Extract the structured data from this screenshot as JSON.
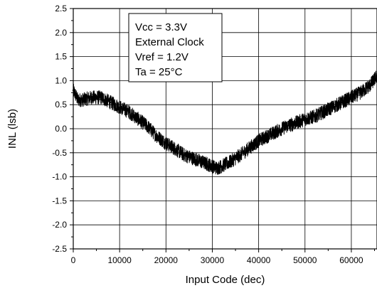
{
  "chart_data": {
    "type": "line",
    "title": "",
    "xlabel": "Input Code (dec)",
    "ylabel": "INL (lsb)",
    "xlim": [
      0,
      65535
    ],
    "ylim": [
      -2.5,
      2.5
    ],
    "xticks": [
      0,
      10000,
      20000,
      30000,
      40000,
      50000,
      60000
    ],
    "xtick_labels": [
      "0",
      "10000",
      "20000",
      "30000",
      "40000",
      "50000",
      "60000"
    ],
    "yticks": [
      2.5,
      2.0,
      1.5,
      1.0,
      0.5,
      0.0,
      -0.5,
      -1.0,
      -1.5,
      -2.0,
      -2.5
    ],
    "ytick_labels": [
      "2.5",
      "2.0",
      "1.5",
      "1.0",
      "0.5",
      "0.0",
      "-0.5",
      "-1.0",
      "-1.5",
      "-2.0",
      "-2.5"
    ],
    "grid": true,
    "line_color": "#000000",
    "noise_band_lsb": 0.15,
    "annotation": {
      "lines": [
        "Vcc = 3.3V",
        "External Clock",
        "Vref = 1.2V",
        "Ta = 25°C"
      ]
    },
    "series": [
      {
        "x": [
          0,
          1000,
          2000,
          4000,
          6000,
          8000,
          10000,
          12000,
          14000,
          16000,
          18000,
          20000,
          22000,
          24000,
          26000,
          28000,
          30000,
          31000,
          32000,
          34000,
          36000,
          38000,
          40000,
          42000,
          44000,
          46000,
          48000,
          50000,
          52000,
          54000,
          56000,
          58000,
          60000,
          62000,
          64000,
          65535
        ],
        "y": [
          0.8,
          0.6,
          0.6,
          0.65,
          0.65,
          0.55,
          0.45,
          0.35,
          0.2,
          0.05,
          -0.15,
          -0.3,
          -0.42,
          -0.55,
          -0.62,
          -0.7,
          -0.78,
          -0.82,
          -0.78,
          -0.68,
          -0.55,
          -0.4,
          -0.25,
          -0.15,
          -0.05,
          0.05,
          0.12,
          0.2,
          0.25,
          0.35,
          0.45,
          0.55,
          0.65,
          0.75,
          0.9,
          1.1
        ]
      }
    ]
  }
}
